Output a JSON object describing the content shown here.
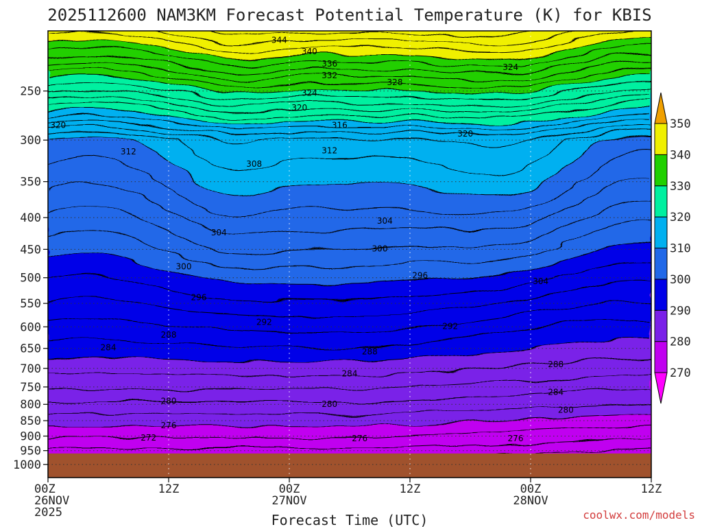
{
  "chart_data": {
    "type": "heatmap",
    "title": "2025112600 NAM3KM Forecast Potential Temperature (K) for KBIS",
    "xlabel": "Forecast Time (UTC)",
    "ylabel": "",
    "credit": "coolwx.com/models",
    "x_ticks": [
      {
        "hour": 0,
        "line1": "00Z",
        "line2": "26NOV",
        "line3": "2025"
      },
      {
        "hour": 12,
        "line1": "12Z",
        "line2": "",
        "line3": ""
      },
      {
        "hour": 24,
        "line1": "00Z",
        "line2": "27NOV",
        "line3": ""
      },
      {
        "hour": 36,
        "line1": "12Z",
        "line2": "",
        "line3": ""
      },
      {
        "hour": 48,
        "line1": "00Z",
        "line2": "28NOV",
        "line3": ""
      },
      {
        "hour": 60,
        "line1": "12Z",
        "line2": "",
        "line3": ""
      }
    ],
    "xlim": [
      0,
      60
    ],
    "y_ticks": [
      250,
      300,
      350,
      400,
      450,
      500,
      550,
      600,
      650,
      700,
      750,
      800,
      850,
      900,
      950,
      1000
    ],
    "ylim_hPa": [
      200,
      1050
    ],
    "ground_level_hPa": 960,
    "colorbar": {
      "levels": [
        270,
        280,
        290,
        300,
        310,
        320,
        330,
        340,
        350
      ],
      "colors": [
        "#ff00ff",
        "#c000f0",
        "#7a20e8",
        "#0000e8",
        "#2068e8",
        "#00b0f0",
        "#00f0a0",
        "#20d000",
        "#f0f000",
        "#f0a000"
      ]
    },
    "ground_color": "#a0522d",
    "contour_labels": [
      {
        "text": "344",
        "hour": 23.0,
        "p": 207
      },
      {
        "text": "340",
        "hour": 26.0,
        "p": 216
      },
      {
        "text": "336",
        "hour": 28.0,
        "p": 226
      },
      {
        "text": "332",
        "hour": 28.0,
        "p": 236
      },
      {
        "text": "328",
        "hour": 34.5,
        "p": 242
      },
      {
        "text": "324",
        "hour": 26.0,
        "p": 252
      },
      {
        "text": "324",
        "hour": 46.0,
        "p": 229
      },
      {
        "text": "320",
        "hour": 25.0,
        "p": 266
      },
      {
        "text": "320",
        "hour": 1.0,
        "p": 284
      },
      {
        "text": "320",
        "hour": 41.5,
        "p": 293
      },
      {
        "text": "316",
        "hour": 29.0,
        "p": 284
      },
      {
        "text": "312",
        "hour": 8.0,
        "p": 313
      },
      {
        "text": "312",
        "hour": 28.0,
        "p": 312
      },
      {
        "text": "308",
        "hour": 20.5,
        "p": 328
      },
      {
        "text": "304",
        "hour": 17.0,
        "p": 423
      },
      {
        "text": "304",
        "hour": 33.5,
        "p": 405
      },
      {
        "text": "304",
        "hour": 49.0,
        "p": 507
      },
      {
        "text": "300",
        "hour": 13.5,
        "p": 480
      },
      {
        "text": "300",
        "hour": 33.0,
        "p": 449
      },
      {
        "text": "296",
        "hour": 15.0,
        "p": 538
      },
      {
        "text": "296",
        "hour": 37.0,
        "p": 496
      },
      {
        "text": "292",
        "hour": 21.5,
        "p": 590
      },
      {
        "text": "292",
        "hour": 40.0,
        "p": 599
      },
      {
        "text": "288",
        "hour": 12.0,
        "p": 618
      },
      {
        "text": "288",
        "hour": 32.0,
        "p": 658
      },
      {
        "text": "288",
        "hour": 50.5,
        "p": 690
      },
      {
        "text": "284",
        "hour": 6.0,
        "p": 648
      },
      {
        "text": "284",
        "hour": 30.0,
        "p": 714
      },
      {
        "text": "284",
        "hour": 50.5,
        "p": 765
      },
      {
        "text": "280",
        "hour": 12.0,
        "p": 790
      },
      {
        "text": "280",
        "hour": 28.0,
        "p": 799
      },
      {
        "text": "280",
        "hour": 51.5,
        "p": 817
      },
      {
        "text": "276",
        "hour": 12.0,
        "p": 865
      },
      {
        "text": "276",
        "hour": 31.0,
        "p": 908
      },
      {
        "text": "276",
        "hour": 46.5,
        "p": 908
      },
      {
        "text": "272",
        "hour": 10.0,
        "p": 906
      }
    ]
  }
}
